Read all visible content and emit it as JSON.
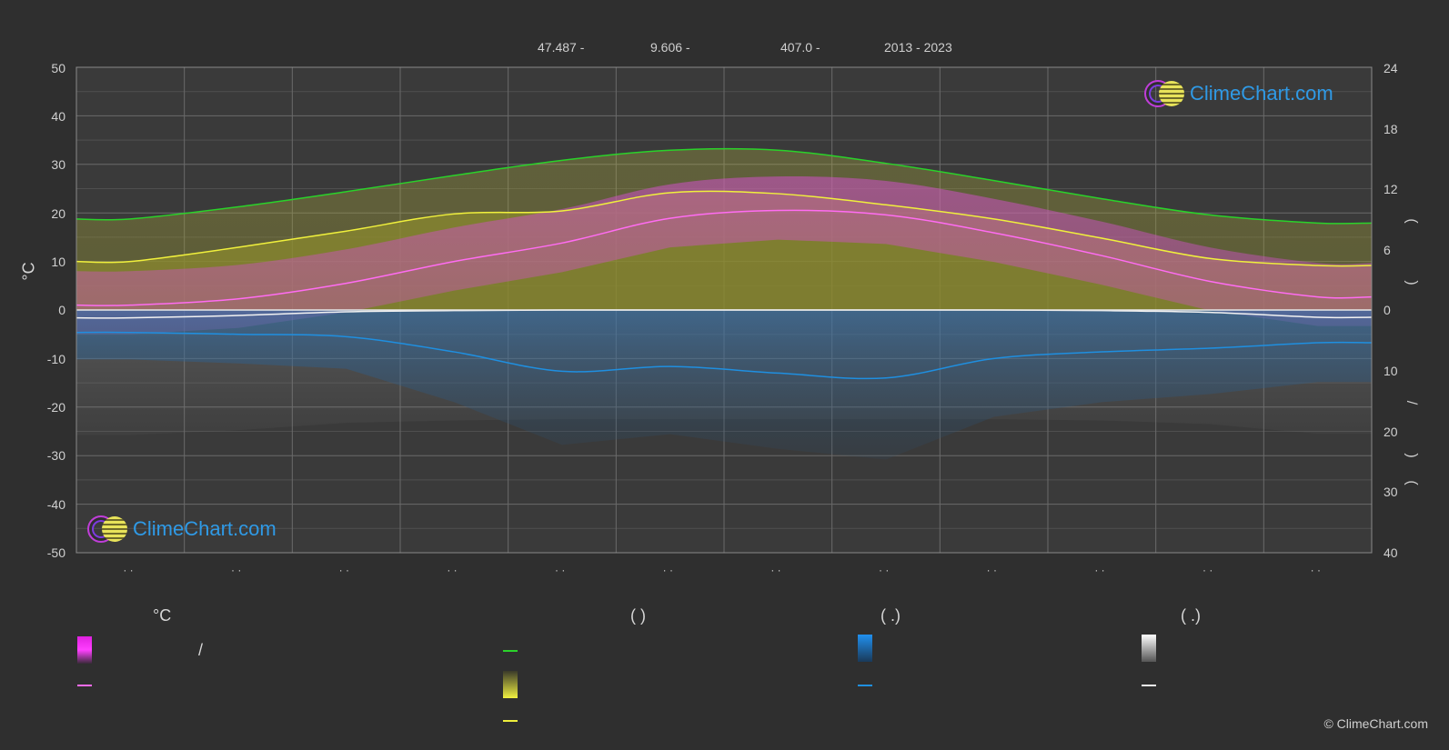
{
  "header": {
    "lat": "47.487 -",
    "lon": "9.606 -",
    "elev": "407.0 -",
    "years": "2013 - 2023"
  },
  "axes": {
    "left_unit": "°C",
    "left_ticks": [
      "50",
      "40",
      "30",
      "20",
      "10",
      "0",
      "-10",
      "-20",
      "-30",
      "-40",
      "-50"
    ],
    "right_ticks_top": [
      "24",
      "18",
      "12",
      "6",
      "0"
    ],
    "right_ticks_bottom": [
      "10",
      "20",
      "30",
      "40"
    ],
    "right_label_fragments": [
      "(",
      ")",
      ")",
      "/",
      "(",
      "·",
      ")",
      "("
    ],
    "month_labels": [
      "· ·",
      "· ·",
      "· ·",
      "· ·",
      "· ·",
      "· ·",
      "· ·",
      "· ·",
      "· ·",
      "· ·",
      "· ·",
      "· ·"
    ]
  },
  "legend": {
    "col1_title": "°C",
    "col1_slash": "/",
    "col2_title": "(            )",
    "col3_title": "(   .)",
    "col4_title": "(   .)"
  },
  "logo_text": "ClimeChart.com",
  "copyright": "© ClimeChart.com",
  "colors": {
    "background": "#2f2f2f",
    "daylight": "#2ad22a",
    "sunshine": "#f0f03c",
    "temp_mean": "#ff6cf2",
    "temp_band": "#d040c8",
    "precip": "#1f8fe0",
    "snow": "#f2f2f2"
  },
  "chart_data": {
    "type": "area",
    "x": [
      1,
      2,
      3,
      4,
      5,
      6,
      7,
      8,
      9,
      10,
      11,
      12
    ],
    "ylim_left": [
      -50,
      50
    ],
    "ylim_right_hours": [
      0,
      24
    ],
    "ylim_right_precip_mm": [
      0,
      40
    ],
    "series": [
      {
        "values": [
          9.0,
          10.2,
          11.7,
          13.3,
          14.8,
          15.8,
          15.8,
          14.5,
          12.8,
          11.0,
          9.4,
          8.6
        ]
      },
      {
        "values": [
          4.8,
          6.2,
          7.8,
          9.5,
          9.8,
          11.6,
          11.5,
          10.4,
          9.0,
          7.1,
          5.1,
          4.4
        ]
      },
      {
        "values": [
          1.0,
          2.3,
          5.5,
          10.0,
          13.8,
          18.9,
          20.5,
          19.6,
          15.9,
          11.2,
          5.9,
          2.7
        ]
      },
      {
        "values": [
          3.7,
          4.0,
          4.4,
          6.9,
          10.1,
          9.3,
          10.4,
          11.2,
          8.0,
          6.9,
          6.3,
          5.4
        ]
      },
      {
        "values": [
          1.3,
          0.9,
          0.3,
          0.1,
          0.0,
          0.0,
          0.0,
          0.0,
          0.0,
          0.1,
          0.4,
          1.2
        ]
      }
    ]
  }
}
